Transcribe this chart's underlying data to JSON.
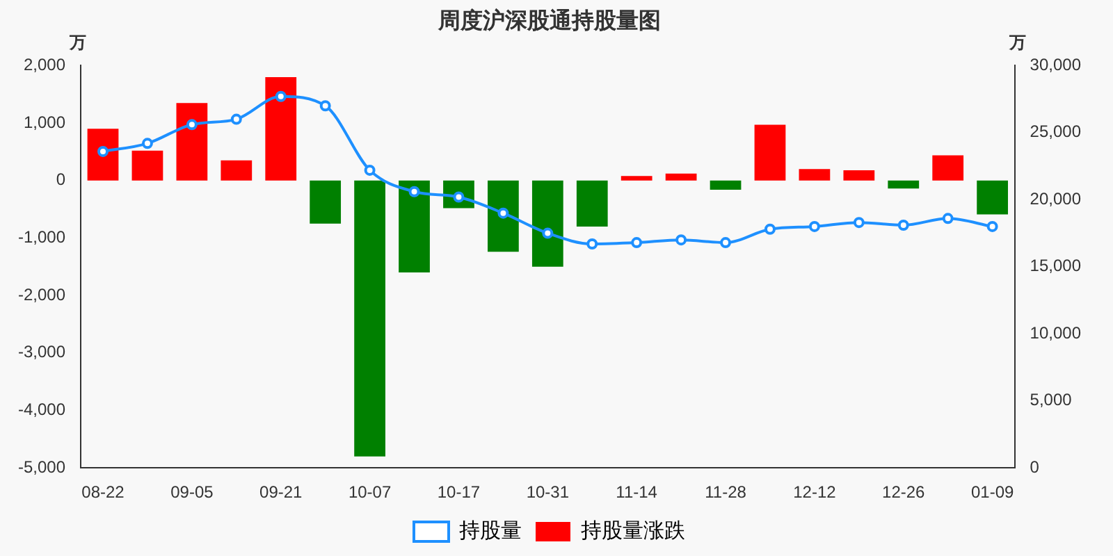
{
  "chart_data": {
    "type": "bar",
    "title": "周度沪深股通持股量图",
    "ylabel": "万",
    "y2label": "万",
    "categories": [
      "08-22",
      null,
      "09-05",
      null,
      "09-21",
      null,
      "10-07",
      null,
      "10-17",
      null,
      "10-31",
      null,
      "11-14",
      null,
      "11-28",
      null,
      "12-12",
      null,
      "12-26",
      null,
      "01-09"
    ],
    "series": [
      {
        "name": "持股量",
        "type": "line",
        "axis": "y2",
        "color": "#1e90ff",
        "marker": "circle",
        "values": [
          23600,
          24200,
          25600,
          26000,
          27700,
          27000,
          22200,
          20600,
          20200,
          19000,
          17500,
          16700,
          16800,
          17000,
          16800,
          17800,
          18000,
          18300,
          18100,
          18600,
          18000
        ]
      },
      {
        "name": "持股量涨跌",
        "color": "#ff0000",
        "colors": [
          "#ff0000",
          "#ff0000",
          "#ff0000",
          "#ff0000",
          "#ff0000",
          "#008000",
          "#008000",
          "#008000",
          "#008000",
          "#008000",
          "#008000",
          "#008000",
          "#ff0000",
          "#ff0000",
          "#008000",
          "#ff0000",
          "#ff0000",
          "#ff0000",
          "#008000",
          "#ff0000",
          "#008000"
        ],
        "values": [
          900,
          520,
          1350,
          350,
          1800,
          -750,
          -4800,
          -1600,
          -480,
          -1240,
          -1500,
          -800,
          80,
          120,
          -160,
          970,
          200,
          180,
          -140,
          440,
          -590
        ]
      }
    ],
    "ylim": [
      -5000,
      2000
    ],
    "yticks": [
      {
        "value": -5000,
        "label": "-5,000"
      },
      {
        "value": -4000,
        "label": "-4,000"
      },
      {
        "value": -3000,
        "label": "-3,000"
      },
      {
        "value": -2000,
        "label": "-2,000"
      },
      {
        "value": -1000,
        "label": "-1,000"
      },
      0,
      {
        "value": 1000,
        "label": "1,000"
      },
      {
        "value": 2000,
        "label": "2,000"
      }
    ],
    "y2lim": [
      0,
      30000
    ],
    "y2ticks": [
      0,
      {
        "value": 5000,
        "label": "5,000"
      },
      {
        "value": 10000,
        "label": "10,000"
      },
      {
        "value": 15000,
        "label": "15,000"
      },
      {
        "value": 20000,
        "label": "20,000"
      },
      {
        "value": 25000,
        "label": "25,000"
      },
      {
        "value": 30000,
        "label": "30,000"
      }
    ],
    "grid": false,
    "legend": "bottom"
  }
}
